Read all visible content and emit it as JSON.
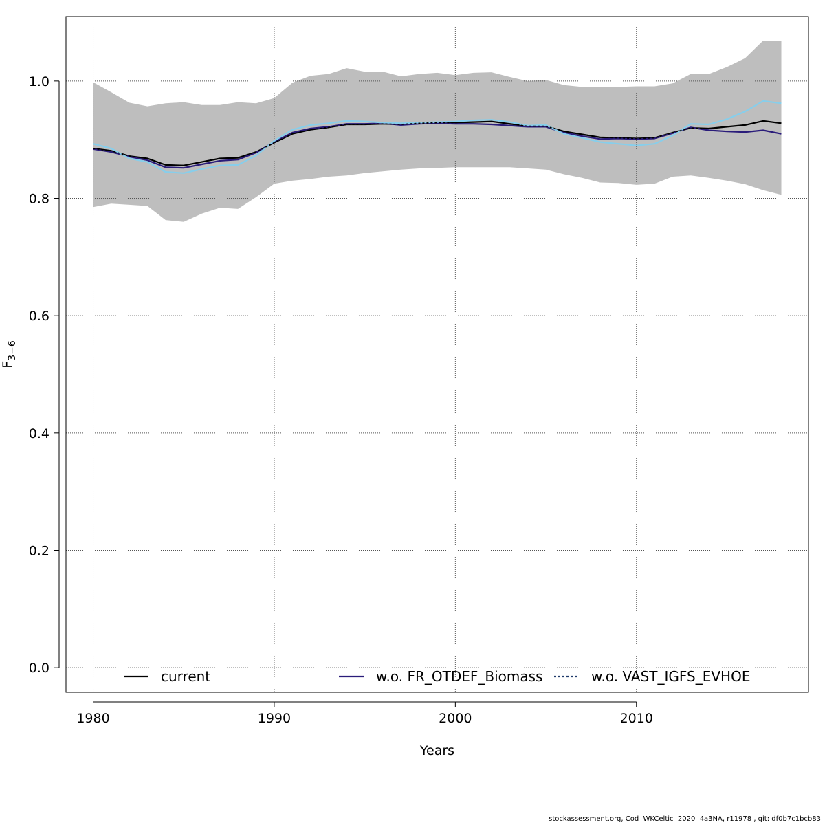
{
  "chart_data": {
    "type": "line",
    "title": "",
    "xlabel": "Years",
    "ylabel": "F",
    "ylabel_sub": "3−6",
    "xlim": [
      1978.5,
      2019.5
    ],
    "ylim": [
      -0.042,
      1.11
    ],
    "xticks": [
      "1980",
      "1990",
      "2000",
      "2010"
    ],
    "yticks": [
      "0.0",
      "0.2",
      "0.4",
      "0.6",
      "0.8",
      "1.0"
    ],
    "grid": true,
    "legend_position": "bottom",
    "x": [
      1980,
      1981,
      1982,
      1983,
      1984,
      1985,
      1986,
      1987,
      1988,
      1989,
      1990,
      1991,
      1992,
      1993,
      1994,
      1995,
      1996,
      1997,
      1998,
      1999,
      2000,
      2001,
      2002,
      2003,
      2004,
      2005,
      2006,
      2007,
      2008,
      2009,
      2010,
      2011,
      2012,
      2013,
      2014,
      2015,
      2016,
      2017,
      2018
    ],
    "band": {
      "color": "#bebebe",
      "upper": [
        0.998,
        0.981,
        0.963,
        0.957,
        0.962,
        0.964,
        0.959,
        0.959,
        0.964,
        0.962,
        0.971,
        0.997,
        1.009,
        1.012,
        1.022,
        1.016,
        1.016,
        1.008,
        1.012,
        1.014,
        1.01,
        1.014,
        1.015,
        1.007,
        1.0,
        1.002,
        0.993,
        0.99,
        0.99,
        0.99,
        0.991,
        0.991,
        0.996,
        1.012,
        1.012,
        1.024,
        1.039,
        1.069,
        1.069
      ],
      "lower": [
        0.785,
        0.791,
        0.789,
        0.787,
        0.763,
        0.76,
        0.774,
        0.784,
        0.782,
        0.802,
        0.825,
        0.83,
        0.833,
        0.837,
        0.839,
        0.843,
        0.846,
        0.849,
        0.851,
        0.852,
        0.853,
        0.853,
        0.853,
        0.853,
        0.851,
        0.849,
        0.841,
        0.835,
        0.827,
        0.826,
        0.823,
        0.825,
        0.837,
        0.839,
        0.835,
        0.83,
        0.824,
        0.814,
        0.806
      ]
    },
    "series": [
      {
        "name": "current",
        "color": "#000000",
        "dash": "solid",
        "width": 2.2,
        "values": [
          0.885,
          0.881,
          0.872,
          0.868,
          0.857,
          0.856,
          0.862,
          0.868,
          0.869,
          0.879,
          0.895,
          0.91,
          0.917,
          0.921,
          0.926,
          0.926,
          0.927,
          0.926,
          0.928,
          0.929,
          0.929,
          0.93,
          0.931,
          0.927,
          0.923,
          0.923,
          0.914,
          0.909,
          0.904,
          0.903,
          0.902,
          0.903,
          0.912,
          0.92,
          0.919,
          0.922,
          0.925,
          0.932,
          0.928
        ]
      },
      {
        "name": "w.o. FR_OTDEF_Biomass",
        "color": "#2a1c7a",
        "dash": "solid",
        "width": 2.2,
        "values": [
          0.884,
          0.879,
          0.871,
          0.865,
          0.853,
          0.852,
          0.858,
          0.864,
          0.866,
          0.878,
          0.896,
          0.912,
          0.919,
          0.922,
          0.927,
          0.927,
          0.928,
          0.925,
          0.927,
          0.928,
          0.927,
          0.927,
          0.926,
          0.924,
          0.922,
          0.922,
          0.912,
          0.906,
          0.901,
          0.902,
          0.901,
          0.902,
          0.911,
          0.921,
          0.916,
          0.914,
          0.913,
          0.916,
          0.91
        ]
      },
      {
        "name": "w.o. VAST_IGFS_EVHOE",
        "color": "#87ceeb",
        "dash": "solid",
        "width": 2.2,
        "values": [
          0.893,
          0.885,
          0.868,
          0.862,
          0.845,
          0.843,
          0.85,
          0.856,
          0.857,
          0.873,
          0.898,
          0.917,
          0.925,
          0.928,
          0.932,
          0.931,
          0.929,
          0.928,
          0.929,
          0.93,
          0.931,
          0.933,
          0.934,
          0.93,
          0.924,
          0.925,
          0.91,
          0.903,
          0.896,
          0.893,
          0.89,
          0.893,
          0.907,
          0.927,
          0.926,
          0.935,
          0.948,
          0.966,
          0.962
        ]
      },
      {
        "name": "w.o. VAST_IGFS_EVHOE_overlay",
        "color": "#000000",
        "dash": "3,3",
        "width": 1.6,
        "legend": false,
        "values": [
          0.885,
          0.881,
          0.872,
          0.868,
          0.857,
          0.856,
          0.862,
          0.868,
          0.869,
          0.879,
          0.895,
          0.91,
          0.917,
          0.921,
          0.926,
          0.926,
          0.927,
          0.926,
          0.928,
          0.929,
          0.929,
          0.93,
          0.931,
          0.927,
          0.923,
          0.923,
          0.914,
          0.909,
          0.904,
          0.903,
          0.902,
          0.903,
          0.912,
          0.92,
          0.919,
          0.922,
          0.925,
          0.932,
          0.928
        ]
      }
    ],
    "legend": [
      {
        "label": "current",
        "color": "#000000",
        "dash": "solid"
      },
      {
        "label": "w.o. FR_OTDEF_Biomass",
        "color": "#2a1c7a",
        "dash": "solid"
      },
      {
        "label": "w.o. VAST_IGFS_EVHOE",
        "color": "#1f3a6b",
        "dash": "3,3"
      }
    ]
  },
  "footer": "stockassessment.org, Cod  WKCeltic  2020  4a3NA, r11978 , git: df0b7c1bcb83"
}
